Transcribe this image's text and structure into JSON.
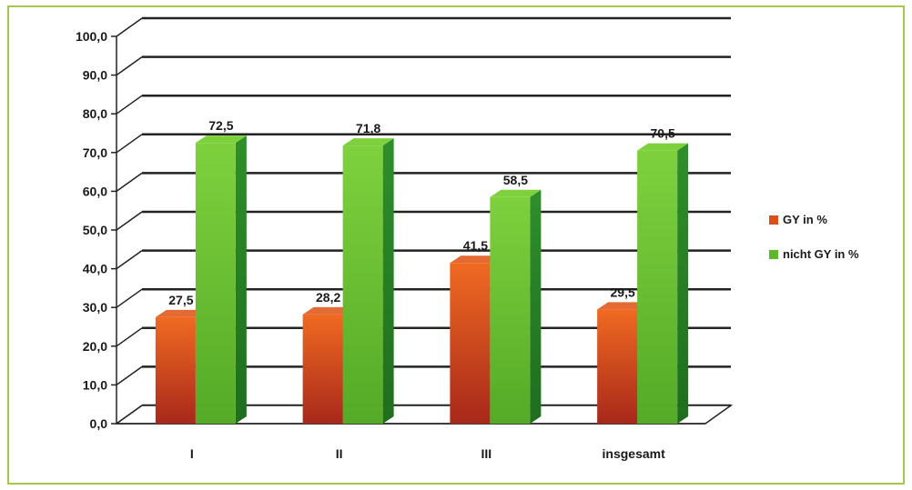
{
  "chart_data": {
    "type": "bar",
    "title": "",
    "xlabel": "",
    "ylabel": "",
    "categories": [
      "I",
      "II",
      "III",
      "insgesamt"
    ],
    "series": [
      {
        "name": "GY in %",
        "values": [
          27.5,
          28.2,
          41.5,
          29.5
        ],
        "labels": [
          "27,5",
          "28,2",
          "41,5",
          "29,5"
        ],
        "color": "#d9501a"
      },
      {
        "name": "nicht GY in %",
        "values": [
          72.5,
          71.8,
          58.5,
          70.5
        ],
        "labels": [
          "72,5",
          "71,8",
          "58,5",
          "70,5"
        ],
        "color": "#5fb82c"
      }
    ],
    "ylim": [
      0,
      100
    ],
    "y_ticks": [
      0,
      10,
      20,
      30,
      40,
      50,
      60,
      70,
      80,
      90,
      100
    ],
    "y_tick_labels": [
      "0,0",
      "10,0",
      "20,0",
      "30,0",
      "40,0",
      "50,0",
      "60,0",
      "70,0",
      "80,0",
      "90,0",
      "100,0"
    ],
    "grid": true,
    "legend_position": "right",
    "style": "3d-column"
  }
}
